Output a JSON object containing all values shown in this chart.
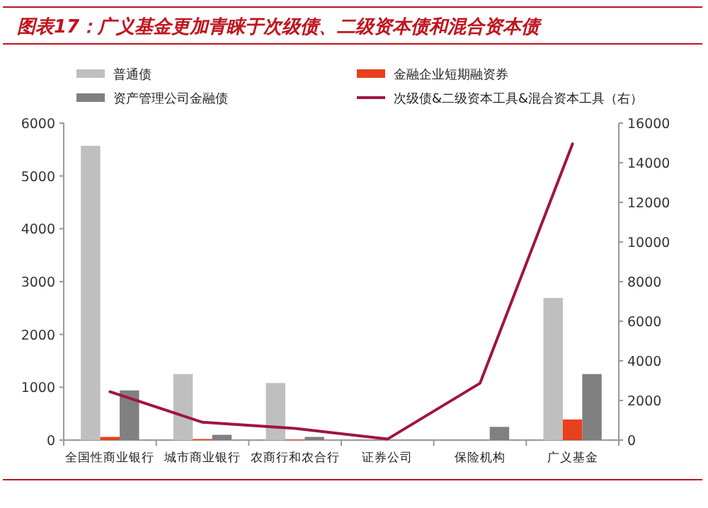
{
  "chart_data": {
    "type": "bar",
    "title": "图表17：广义基金更加青睐于次级债、二级资本债和混合资本债",
    "categories": [
      "全国性商业银行",
      "城市商业银行",
      "农商行和农合行",
      "证券公司",
      "保险机构",
      "广义基金"
    ],
    "series": [
      {
        "name": "普通债",
        "color": "#bfbfbf",
        "values": [
          5570,
          1250,
          1080,
          null,
          null,
          2690
        ]
      },
      {
        "name": "金融企业短期融资券",
        "color": "#e8401c",
        "values": [
          60,
          20,
          10,
          0,
          0,
          390
        ]
      },
      {
        "name": "资产管理公司金融债",
        "color": "#808080",
        "values": [
          940,
          100,
          60,
          null,
          250,
          1250
        ]
      },
      {
        "name": "次级债&二级资本工具&混合资本工具（右）",
        "type": "line",
        "axis": "y2",
        "color": "#a0153e",
        "values": [
          2440,
          900,
          590,
          50,
          2870,
          14950
        ]
      }
    ],
    "ylim": [
      0,
      6000
    ],
    "yticks": [
      0,
      1000,
      2000,
      3000,
      4000,
      5000,
      6000
    ],
    "y2lim": [
      0,
      16000
    ],
    "y2ticks": [
      0,
      2000,
      4000,
      6000,
      8000,
      10000,
      12000,
      14000,
      16000
    ],
    "legend": "top"
  }
}
